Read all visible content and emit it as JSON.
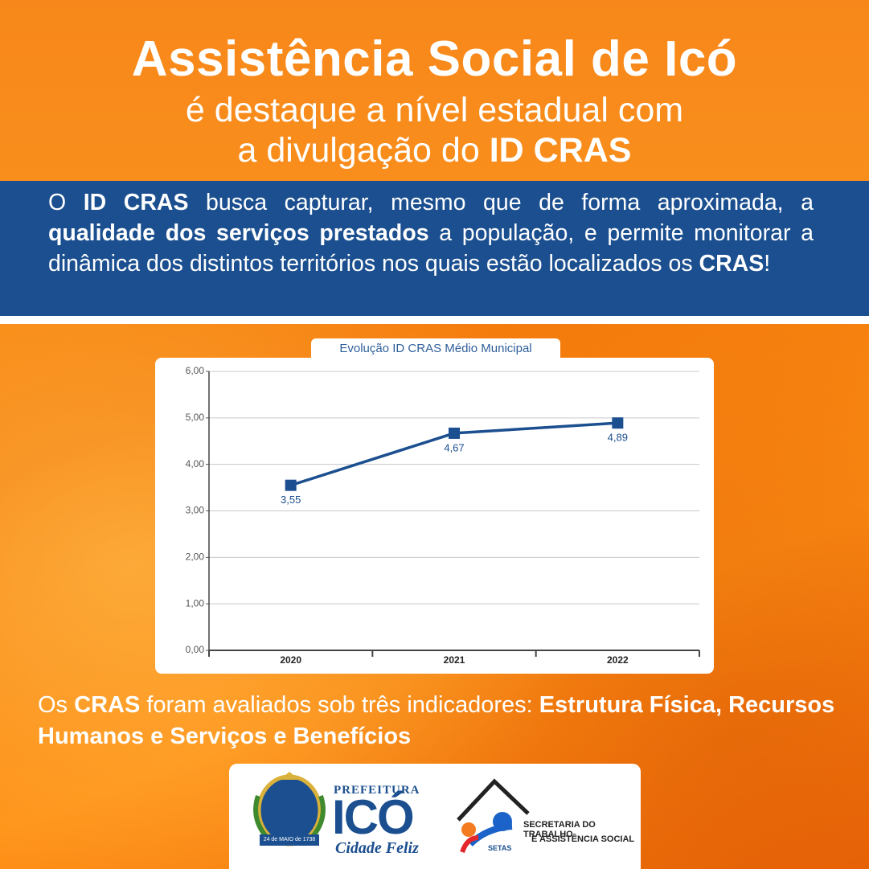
{
  "header": {
    "title": "Assistência Social de Icó",
    "subtitle_lines": [
      [
        {
          "text": "é destaque a nível estadual com",
          "bold": false
        }
      ],
      [
        {
          "text": "a divulgação do ",
          "bold": false
        },
        {
          "text": "ID CRAS",
          "bold": true
        }
      ]
    ]
  },
  "intro": [
    {
      "text": "O ",
      "bold": false
    },
    {
      "text": "ID CRAS",
      "bold": true
    },
    {
      "text": " busca capturar, mesmo que de forma aproximada, a ",
      "bold": false
    },
    {
      "text": "qualidade dos serviços prestados",
      "bold": true
    },
    {
      "text": " a população, e permite monitorar a dinâmica dos distintos territórios nos quais estão localizados os ",
      "bold": false
    },
    {
      "text": "CRAS",
      "bold": true
    },
    {
      "text": "!",
      "bold": false
    }
  ],
  "chart_data": {
    "type": "line",
    "title": "Evolução ID CRAS Médio Municipal",
    "categories": [
      "2020",
      "2021",
      "2022"
    ],
    "values": [
      3.55,
      4.67,
      4.89
    ],
    "value_labels": [
      "3,55",
      "4,67",
      "4,89"
    ],
    "color": "#1b4f8f",
    "ylim": [
      0,
      6
    ],
    "yticks": [
      {
        "value": 0,
        "label": "0,00"
      },
      {
        "value": 1,
        "label": "1,00"
      },
      {
        "value": 2,
        "label": "2,00"
      },
      {
        "value": 3,
        "label": "3,00"
      },
      {
        "value": 4,
        "label": "4,00"
      },
      {
        "value": 5,
        "label": "5,00"
      },
      {
        "value": 6,
        "label": "6,00"
      }
    ],
    "grid": true
  },
  "note": [
    {
      "text": "Os ",
      "bold": false
    },
    {
      "text": "CRAS",
      "bold": true
    },
    {
      "text": " foram avaliados sob três indicadores: ",
      "bold": false
    },
    {
      "text": "Estrutura Física, Recursos Humanos e Serviços e Benefícios",
      "bold": true
    }
  ],
  "logos": {
    "prefeitura": "PREFEITURA",
    "city": "ICÓ",
    "slogan": "Cidade Feliz",
    "seal_text": "24 de MAIO de 1738",
    "setas": "SETAS",
    "secretaria_lines": [
      "SECRETARIA DO TRABALHO",
      "E ASSISTÊNCIA SOCIAL"
    ]
  }
}
